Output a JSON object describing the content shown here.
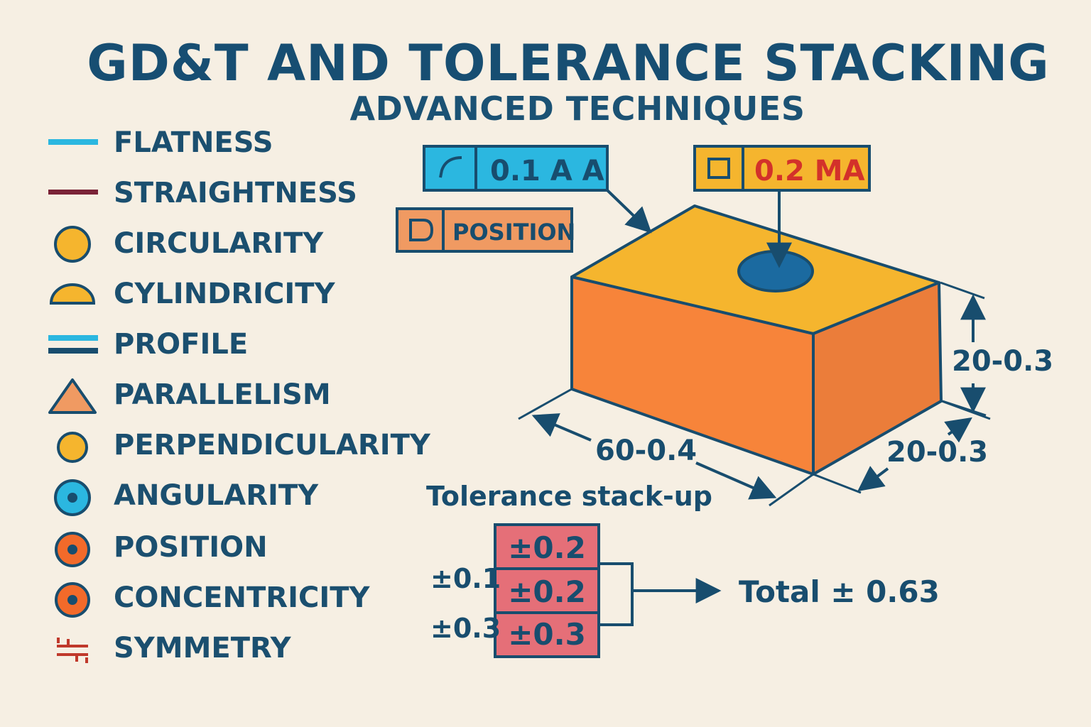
{
  "header": {
    "title": "GD&T AND TOLERANCE STACKING",
    "subtitle": "ADVANCED TECHNIQUES"
  },
  "legend": {
    "items": [
      {
        "label": "FLATNESS",
        "icon": "flatness-icon"
      },
      {
        "label": "STRAIGHTNESS",
        "icon": "straightness-icon"
      },
      {
        "label": "CIRCULARITY",
        "icon": "circularity-icon"
      },
      {
        "label": "CYLINDRICITY",
        "icon": "cylindricity-icon"
      },
      {
        "label": "PROFILE",
        "icon": "profile-icon"
      },
      {
        "label": "PARALLELISM",
        "icon": "parallelism-icon"
      },
      {
        "label": "PERPENDICULARITY",
        "icon": "perpendicularity-icon"
      },
      {
        "label": "ANGULARITY",
        "icon": "angularity-icon"
      },
      {
        "label": "POSITION",
        "icon": "position-icon"
      },
      {
        "label": "CONCENTRICITY",
        "icon": "concentricity-icon"
      },
      {
        "label": "SYMMETRY",
        "icon": "symmetry-icon"
      }
    ]
  },
  "frames": {
    "profile_frame": {
      "value": "0.1 A A"
    },
    "square_frame": {
      "value": "0.2 MA"
    },
    "position_frame": {
      "value": "POSITION"
    }
  },
  "dimensions": {
    "height": "20-0.3",
    "depth": "20-0.3",
    "length": "60-0.4"
  },
  "stack": {
    "title": "Tolerance stack-up",
    "cells": [
      "±0.2",
      "±0.2",
      "±0.3"
    ],
    "side_labels": [
      "±0.1",
      "±0.3"
    ],
    "total": "Total ± 0.63"
  },
  "colors": {
    "background": "#f6efe3",
    "navy": "#184d6e",
    "cyan": "#2bb7e0",
    "gold": "#f5b52e",
    "orange": "#f7843a",
    "salmon": "#f09a62",
    "pink": "#e56f78",
    "red": "#d3312a",
    "maroon": "#7a2337",
    "blue": "#1b6aa0"
  }
}
